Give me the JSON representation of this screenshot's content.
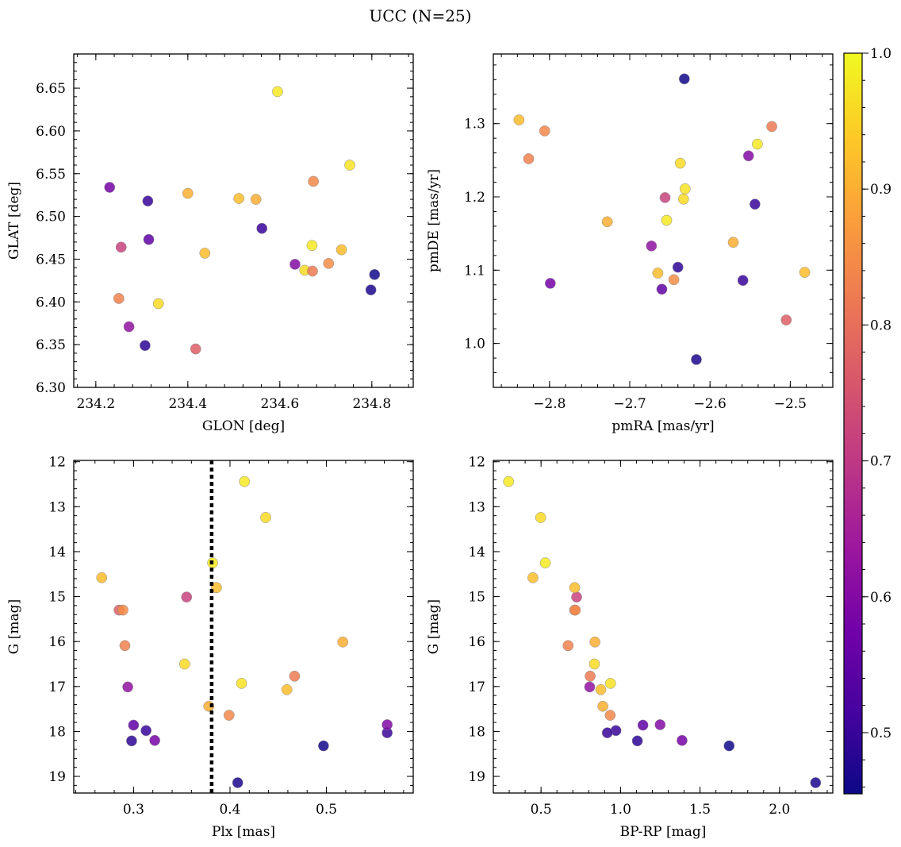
{
  "title": "UCC (N=25)",
  "colorbar": {
    "range": [
      0.455,
      1.0
    ],
    "ticks": [
      0.5,
      0.6,
      0.7,
      0.8,
      0.9,
      1.0
    ],
    "tick_labels": [
      "0.5",
      "0.6",
      "0.7",
      "0.8",
      "0.9",
      "1.0"
    ],
    "colormap": "plasma",
    "stops": [
      "#0d0887",
      "#46039f",
      "#7201a8",
      "#9c179e",
      "#bd3786",
      "#d8576b",
      "#ed7953",
      "#fb9f3a",
      "#fdca26",
      "#f0f921"
    ]
  },
  "stars": [
    {
      "glon": 234.23,
      "glat": 6.534,
      "pmra": -2.799,
      "pmde": 1.082,
      "plx": 0.322,
      "g": 18.2,
      "bprp": 1.387,
      "p": 0.58
    },
    {
      "glon": 234.313,
      "glat": 6.518,
      "pmra": -2.559,
      "pmde": 1.086,
      "plx": 0.313,
      "g": 17.98,
      "bprp": 0.971,
      "p": 0.5
    },
    {
      "glon": 234.315,
      "glat": 6.473,
      "pmra": -2.66,
      "pmde": 1.074,
      "plx": 0.3,
      "g": 17.86,
      "bprp": 1.141,
      "p": 0.55
    },
    {
      "glon": 234.255,
      "glat": 6.464,
      "pmra": -2.656,
      "pmde": 1.199,
      "plx": 0.355,
      "g": 15.01,
      "bprp": 0.724,
      "p": 0.72
    },
    {
      "glon": 234.25,
      "glat": 6.404,
      "pmra": -2.826,
      "pmde": 1.252,
      "plx": 0.291,
      "g": 16.09,
      "bprp": 0.67,
      "p": 0.83
    },
    {
      "glon": 234.272,
      "glat": 6.371,
      "pmra": -2.673,
      "pmde": 1.133,
      "plx": 0.294,
      "g": 17.01,
      "bprp": 0.806,
      "p": 0.62
    },
    {
      "glon": 234.307,
      "glat": 6.349,
      "pmra": -2.64,
      "pmde": 1.104,
      "plx": 0.298,
      "g": 18.21,
      "bprp": 1.106,
      "p": 0.49
    },
    {
      "glon": 234.336,
      "glat": 6.398,
      "pmra": -2.637,
      "pmde": 1.246,
      "plx": 0.353,
      "g": 16.5,
      "bprp": 0.836,
      "p": 0.96
    },
    {
      "glon": 234.4,
      "glat": 6.527,
      "pmra": -2.571,
      "pmde": 1.138,
      "plx": 0.517,
      "g": 16.01,
      "bprp": 0.839,
      "p": 0.9
    },
    {
      "glon": 234.417,
      "glat": 6.345,
      "pmra": -2.505,
      "pmde": 1.032,
      "plx": 0.285,
      "g": 15.3,
      "bprp": 0.712,
      "p": 0.77
    },
    {
      "glon": 234.437,
      "glat": 6.457,
      "pmra": -2.838,
      "pmde": 1.305,
      "plx": 0.267,
      "g": 14.58,
      "bprp": 0.449,
      "p": 0.92
    },
    {
      "glon": 234.511,
      "glat": 6.521,
      "pmra": -2.665,
      "pmde": 1.096,
      "plx": 0.459,
      "g": 17.07,
      "bprp": 0.876,
      "p": 0.92
    },
    {
      "glon": 234.548,
      "glat": 6.52,
      "pmra": -2.728,
      "pmde": 1.166,
      "plx": 0.378,
      "g": 17.44,
      "bprp": 0.889,
      "p": 0.9
    },
    {
      "glon": 234.561,
      "glat": 6.486,
      "pmra": -2.544,
      "pmde": 1.19,
      "plx": 0.563,
      "g": 18.03,
      "bprp": 0.917,
      "p": 0.5
    },
    {
      "glon": 234.595,
      "glat": 6.646,
      "pmra": -2.654,
      "pmde": 1.168,
      "plx": 0.415,
      "g": 12.44,
      "bprp": 0.296,
      "p": 0.98
    },
    {
      "glon": 234.633,
      "glat": 6.444,
      "pmra": -2.552,
      "pmde": 1.256,
      "plx": 0.563,
      "g": 17.85,
      "bprp": 1.249,
      "p": 0.6
    },
    {
      "glon": 234.654,
      "glat": 6.437,
      "pmra": -2.633,
      "pmde": 1.197,
      "plx": 0.437,
      "g": 13.24,
      "bprp": 0.498,
      "p": 0.96
    },
    {
      "glon": 234.67,
      "glat": 6.466,
      "pmra": -2.541,
      "pmde": 1.272,
      "plx": 0.382,
      "g": 14.25,
      "bprp": 0.527,
      "p": 0.98
    },
    {
      "glon": 234.671,
      "glat": 6.436,
      "pmra": -2.523,
      "pmde": 1.296,
      "plx": 0.467,
      "g": 16.77,
      "bprp": 0.809,
      "p": 0.82
    },
    {
      "glon": 234.673,
      "glat": 6.541,
      "pmra": -2.806,
      "pmde": 1.29,
      "plx": 0.399,
      "g": 17.64,
      "bprp": 0.935,
      "p": 0.84
    },
    {
      "glon": 234.706,
      "glat": 6.445,
      "pmra": -2.645,
      "pmde": 1.087,
      "plx": 0.289,
      "g": 15.3,
      "bprp": 0.715,
      "p": 0.85
    },
    {
      "glon": 234.734,
      "glat": 6.461,
      "pmra": -2.482,
      "pmde": 1.097,
      "plx": 0.386,
      "g": 14.8,
      "bprp": 0.712,
      "p": 0.92
    },
    {
      "glon": 234.752,
      "glat": 6.56,
      "pmra": -2.631,
      "pmde": 1.211,
      "plx": 0.412,
      "g": 16.93,
      "bprp": 0.937,
      "p": 0.97
    },
    {
      "glon": 234.798,
      "glat": 6.414,
      "pmra": -2.617,
      "pmde": 0.978,
      "plx": 0.408,
      "g": 19.14,
      "bprp": 2.227,
      "p": 0.47
    },
    {
      "glon": 234.806,
      "glat": 6.432,
      "pmra": -2.632,
      "pmde": 1.361,
      "plx": 0.497,
      "g": 18.32,
      "bprp": 1.683,
      "p": 0.46
    }
  ],
  "chart_data": [
    {
      "type": "scatter",
      "id": "glon-glat",
      "xkey": "glon",
      "ykey": "glat",
      "xlabel": "GLON [deg]",
      "ylabel": "GLAT [deg]",
      "xlim": [
        234.152,
        234.89
      ],
      "ylim": [
        6.3,
        6.69
      ],
      "yinvert": false,
      "xticks": [
        234.2,
        234.4,
        234.6,
        234.8
      ],
      "xtick_labels": [
        "234.2",
        "234.4",
        "234.6",
        "234.8"
      ],
      "xminor_step": 0.04,
      "yticks": [
        6.3,
        6.35,
        6.4,
        6.45,
        6.5,
        6.55,
        6.6,
        6.65
      ],
      "ytick_labels": [
        "6.30",
        "6.35",
        "6.40",
        "6.45",
        "6.50",
        "6.55",
        "6.60",
        "6.65"
      ],
      "yminor_step": 0.01,
      "color_key": "p"
    },
    {
      "type": "scatter",
      "id": "pmra-pmde",
      "xkey": "pmra",
      "ykey": "pmde",
      "xlabel": "pmRA [mas/yr]",
      "ylabel": "pmDE [mas/yr]",
      "xlim": [
        -2.87,
        -2.447
      ],
      "ylim": [
        0.94,
        1.395
      ],
      "yinvert": false,
      "xticks": [
        -2.8,
        -2.7,
        -2.6,
        -2.5
      ],
      "xtick_labels": [
        "−2.8",
        "−2.7",
        "−2.6",
        "−2.5"
      ],
      "xminor_step": 0.02,
      "yticks": [
        1.0,
        1.1,
        1.2,
        1.3
      ],
      "ytick_labels": [
        "1.0",
        "1.1",
        "1.2",
        "1.3"
      ],
      "yminor_step": 0.02,
      "color_key": "p"
    },
    {
      "type": "scatter",
      "id": "plx-g",
      "xkey": "plx",
      "ykey": "g",
      "xlabel": "Plx [mas]",
      "ylabel": "G [mag]",
      "xlim": [
        0.238,
        0.59
      ],
      "ylim": [
        11.97,
        19.37
      ],
      "yinvert": true,
      "xticks": [
        0.3,
        0.4,
        0.5
      ],
      "xtick_labels": [
        "0.3",
        "0.4",
        "0.5"
      ],
      "xminor_step": 0.02,
      "yticks": [
        12,
        13,
        14,
        15,
        16,
        17,
        18,
        19
      ],
      "ytick_labels": [
        "12",
        "13",
        "14",
        "15",
        "16",
        "17",
        "18",
        "19"
      ],
      "yminor_step": 0.2,
      "vline": 0.381,
      "color_key": "p"
    },
    {
      "type": "scatter",
      "id": "bprp-g",
      "xkey": "bprp",
      "ykey": "g",
      "xlabel": "BP-RP [mag]",
      "ylabel": "G [mag]",
      "xlim": [
        0.2,
        2.335
      ],
      "ylim": [
        11.97,
        19.37
      ],
      "yinvert": true,
      "xticks": [
        0.5,
        1.0,
        1.5,
        2.0
      ],
      "xtick_labels": [
        "0.5",
        "1.0",
        "1.5",
        "2.0"
      ],
      "xminor_step": 0.1,
      "yticks": [
        12,
        13,
        14,
        15,
        16,
        17,
        18,
        19
      ],
      "ytick_labels": [
        "12",
        "13",
        "14",
        "15",
        "16",
        "17",
        "18",
        "19"
      ],
      "yminor_step": 0.2,
      "color_key": "p"
    }
  ]
}
